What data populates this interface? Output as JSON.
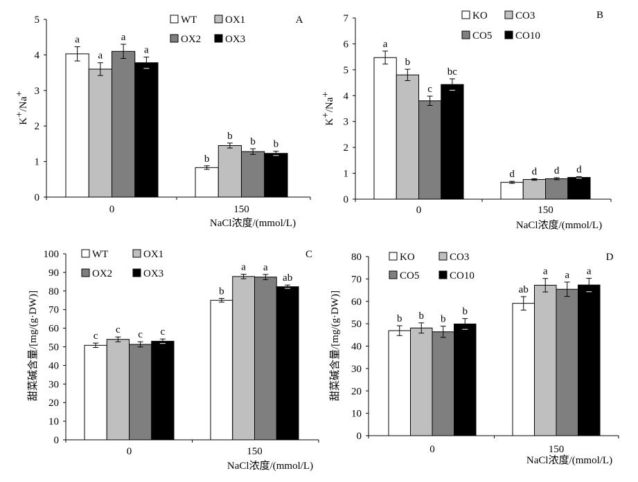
{
  "chart_data": [
    {
      "type": "bar",
      "panel_label": "A",
      "categories": [
        "0",
        "150"
      ],
      "series": [
        {
          "name": "WT",
          "values": [
            4.03,
            0.83
          ],
          "errors": [
            0.2,
            0.05
          ],
          "letters": [
            "a",
            "b"
          ],
          "color": "#ffffff"
        },
        {
          "name": "OX1",
          "values": [
            3.6,
            1.45
          ],
          "errors": [
            0.18,
            0.07
          ],
          "letters": [
            "a",
            "b"
          ],
          "color": "#bfbfbf"
        },
        {
          "name": "OX2",
          "values": [
            4.1,
            1.28
          ],
          "errors": [
            0.2,
            0.08
          ],
          "letters": [
            "a",
            "b"
          ],
          "color": "#7f7f7f"
        },
        {
          "name": "OX3",
          "values": [
            3.78,
            1.23
          ],
          "errors": [
            0.16,
            0.06
          ],
          "letters": [
            "a",
            "b"
          ],
          "color": "#000000"
        }
      ],
      "ylabel_main": "K",
      "ylabel_sup1": "+",
      "ylabel_mid": "/Na",
      "ylabel_sup2": "+",
      "xlabel": "NaCl浓度/(mmol/L)",
      "ylim": [
        0,
        5
      ],
      "yticks": [
        "0",
        "1",
        "2",
        "3",
        "4",
        "5"
      ]
    },
    {
      "type": "bar",
      "panel_label": "B",
      "categories": [
        "0",
        "150"
      ],
      "series": [
        {
          "name": "KO",
          "values": [
            5.47,
            0.65
          ],
          "errors": [
            0.25,
            0.04
          ],
          "letters": [
            "a",
            "d"
          ],
          "color": "#ffffff"
        },
        {
          "name": "CO3",
          "values": [
            4.8,
            0.76
          ],
          "errors": [
            0.22,
            0.03
          ],
          "letters": [
            "b",
            "d"
          ],
          "color": "#bfbfbf"
        },
        {
          "name": "CO5",
          "values": [
            3.8,
            0.79
          ],
          "errors": [
            0.18,
            0.04
          ],
          "letters": [
            "c",
            "d"
          ],
          "color": "#7f7f7f"
        },
        {
          "name": "CO10",
          "values": [
            4.43,
            0.84
          ],
          "errors": [
            0.22,
            0.03
          ],
          "letters": [
            "bc",
            "d"
          ],
          "color": "#000000"
        }
      ],
      "ylabel_main": "K",
      "ylabel_sup1": "+",
      "ylabel_mid": "/Na",
      "ylabel_sup2": "+",
      "xlabel": "NaCl浓度/(mmol/L)",
      "ylim": [
        0,
        7
      ],
      "yticks": [
        "0",
        "1",
        "2",
        "3",
        "4",
        "5",
        "6",
        "7"
      ]
    },
    {
      "type": "bar",
      "panel_label": "C",
      "categories": [
        "0",
        "150"
      ],
      "series": [
        {
          "name": "WT",
          "values": [
            50.8,
            75.0
          ],
          "errors": [
            1.2,
            1.0
          ],
          "letters": [
            "c",
            "b"
          ],
          "color": "#ffffff"
        },
        {
          "name": "OX1",
          "values": [
            54.0,
            87.8
          ],
          "errors": [
            1.3,
            1.2
          ],
          "letters": [
            "c",
            "a"
          ],
          "color": "#bfbfbf"
        },
        {
          "name": "OX2",
          "values": [
            51.3,
            87.5
          ],
          "errors": [
            1.4,
            1.4
          ],
          "letters": [
            "c",
            "a"
          ],
          "color": "#7f7f7f"
        },
        {
          "name": "OX3",
          "values": [
            53.0,
            82.3
          ],
          "errors": [
            1.2,
            0.9
          ],
          "letters": [
            "c",
            "ab"
          ],
          "color": "#000000"
        }
      ],
      "ylabel": "甜菜碱含量/[mg/(g·DW)]",
      "xlabel": "NaCl浓度/(mmol/L)",
      "ylim": [
        0,
        100
      ],
      "yticks": [
        "0",
        "10",
        "20",
        "30",
        "40",
        "50",
        "60",
        "70",
        "80",
        "90",
        "100"
      ]
    },
    {
      "type": "bar",
      "panel_label": "D",
      "categories": [
        "0",
        "150"
      ],
      "series": [
        {
          "name": "KO",
          "values": [
            46.9,
            59.1
          ],
          "errors": [
            2.2,
            3.0
          ],
          "letters": [
            "b",
            "ab"
          ],
          "color": "#ffffff"
        },
        {
          "name": "CO3",
          "values": [
            48.1,
            67.2
          ],
          "errors": [
            2.3,
            3.0
          ],
          "letters": [
            "b",
            "a"
          ],
          "color": "#bfbfbf"
        },
        {
          "name": "CO5",
          "values": [
            46.4,
            65.4
          ],
          "errors": [
            2.5,
            3.2
          ],
          "letters": [
            "b",
            "a"
          ],
          "color": "#7f7f7f"
        },
        {
          "name": "CO10",
          "values": [
            49.9,
            67.3
          ],
          "errors": [
            2.4,
            3.0
          ],
          "letters": [
            "b",
            "a"
          ],
          "color": "#000000"
        }
      ],
      "ylabel": "甜菜碱含量/[mg/(g·DW)]",
      "xlabel": "NaCl浓度/(mmol/L)",
      "ylim": [
        0,
        80
      ],
      "yticks": [
        "0",
        "10",
        "20",
        "30",
        "40",
        "50",
        "60",
        "70",
        "80"
      ]
    }
  ]
}
